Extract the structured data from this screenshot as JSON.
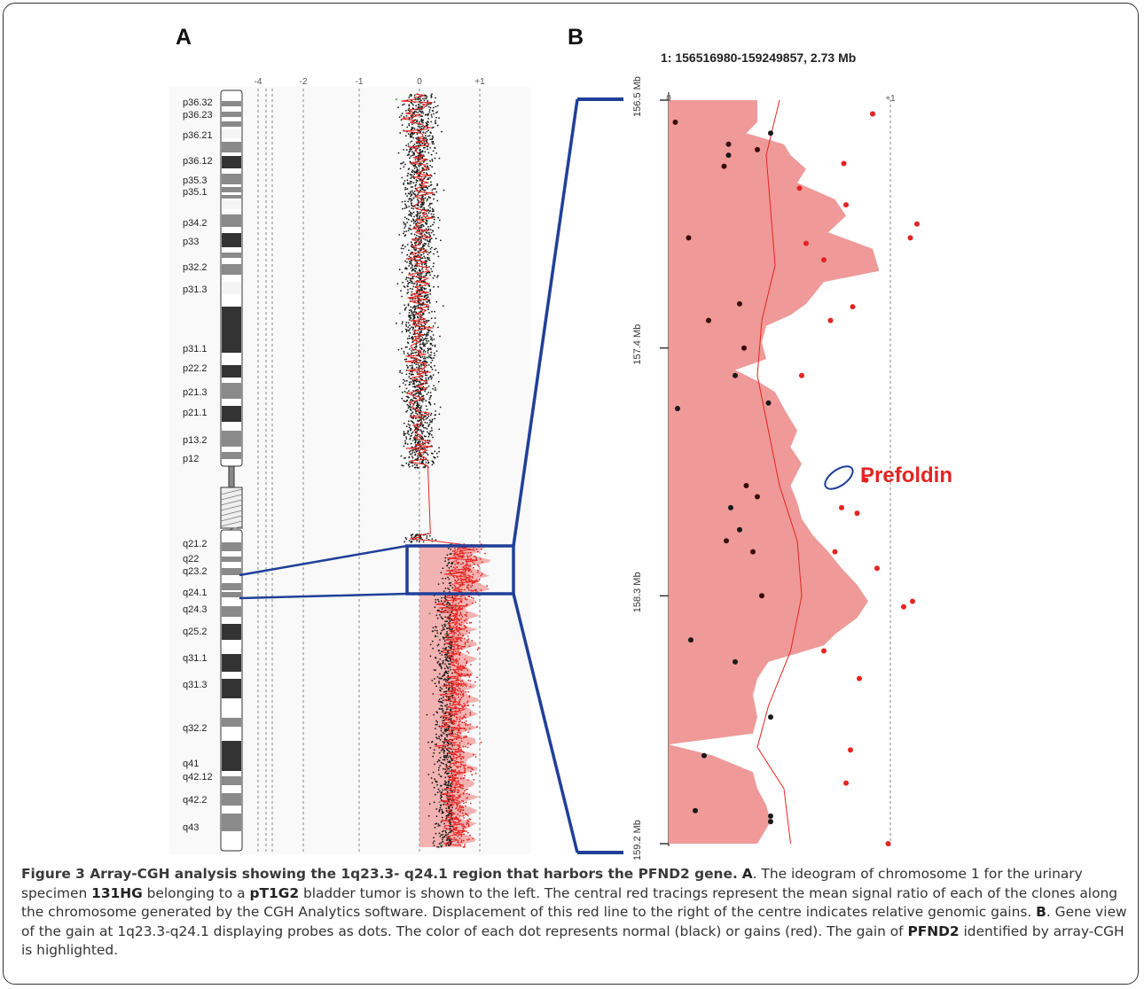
{
  "figure": {
    "panel_a_label": "A",
    "panel_b_label": "B",
    "panel_b_title": "1: 156516980-159249857, 2.73 Mb",
    "callout_label": "Prefoldin",
    "colors": {
      "gain": "#e52420",
      "gain_fill": "#ef9a98",
      "normal": "#1a1a1a",
      "highlight_box": "#1f3f99",
      "ideogram_dark": "#333333",
      "ideogram_gray": "#8a8a8a"
    }
  },
  "chart_data": [
    {
      "type": "scatter",
      "panel": "A",
      "x_ticks": [
        "-4",
        "-2",
        "-1",
        "0",
        "+1"
      ],
      "band_labels": [
        "p36.32",
        "p36.23",
        "p36.21",
        "p36.12",
        "p35.3",
        "p35.1",
        "p34.2",
        "p33",
        "p32.2",
        "p31.3",
        "p31.1",
        "p22.2",
        "p21.3",
        "p21.1",
        "p13.2",
        "p12",
        "q21.2",
        "q22",
        "q23.2",
        "q24.1",
        "q24.3",
        "q25.2",
        "q31.1",
        "q31.3",
        "q32.2",
        "q41",
        "q42.12",
        "q42.2",
        "q43"
      ],
      "highlighted_region": "1q23.3-q24.1"
    },
    {
      "type": "scatter",
      "panel": "B",
      "x_ticks": [
        "0",
        "+1"
      ],
      "y_ticks": [
        "156.5 Mb",
        "157.4 Mb",
        "158.3 Mb",
        "159.2 Mb"
      ],
      "y_values": [
        156.5,
        157.4,
        158.3,
        159.2
      ],
      "xlim": [
        0,
        1
      ],
      "ylim": [
        156.5,
        159.2
      ],
      "highlighted_probe": "Prefoldin"
    }
  ],
  "caption": {
    "fig_no": "Figure 3",
    "title": "Array-CGH analysis showing the 1q23.3- q24.1 region that harbors the PFND2 gene.",
    "a_label": "A",
    "a_text_1": ". The ideogram of chromosome 1 for the urinary specimen ",
    "specimen": "131HG",
    "a_text_2": " belonging to a ",
    "stage": "pT1G2",
    "a_text_3": " bladder tumor is shown to the left. The central red tracings represent the mean signal ratio of each of the clones along the chromosome generated by the CGH Analytics software. Displacement of this red line to the right of the centre indicates relative genomic gains. ",
    "b_label": "B",
    "b_text_1": ". Gene view of the gain at 1q23.3-q24.1 displaying probes as dots. The color of each dot represents normal (black) or gains (red). The gain of ",
    "gene": "PFND2",
    "b_text_2": " identified by array-CGH is highlighted."
  }
}
